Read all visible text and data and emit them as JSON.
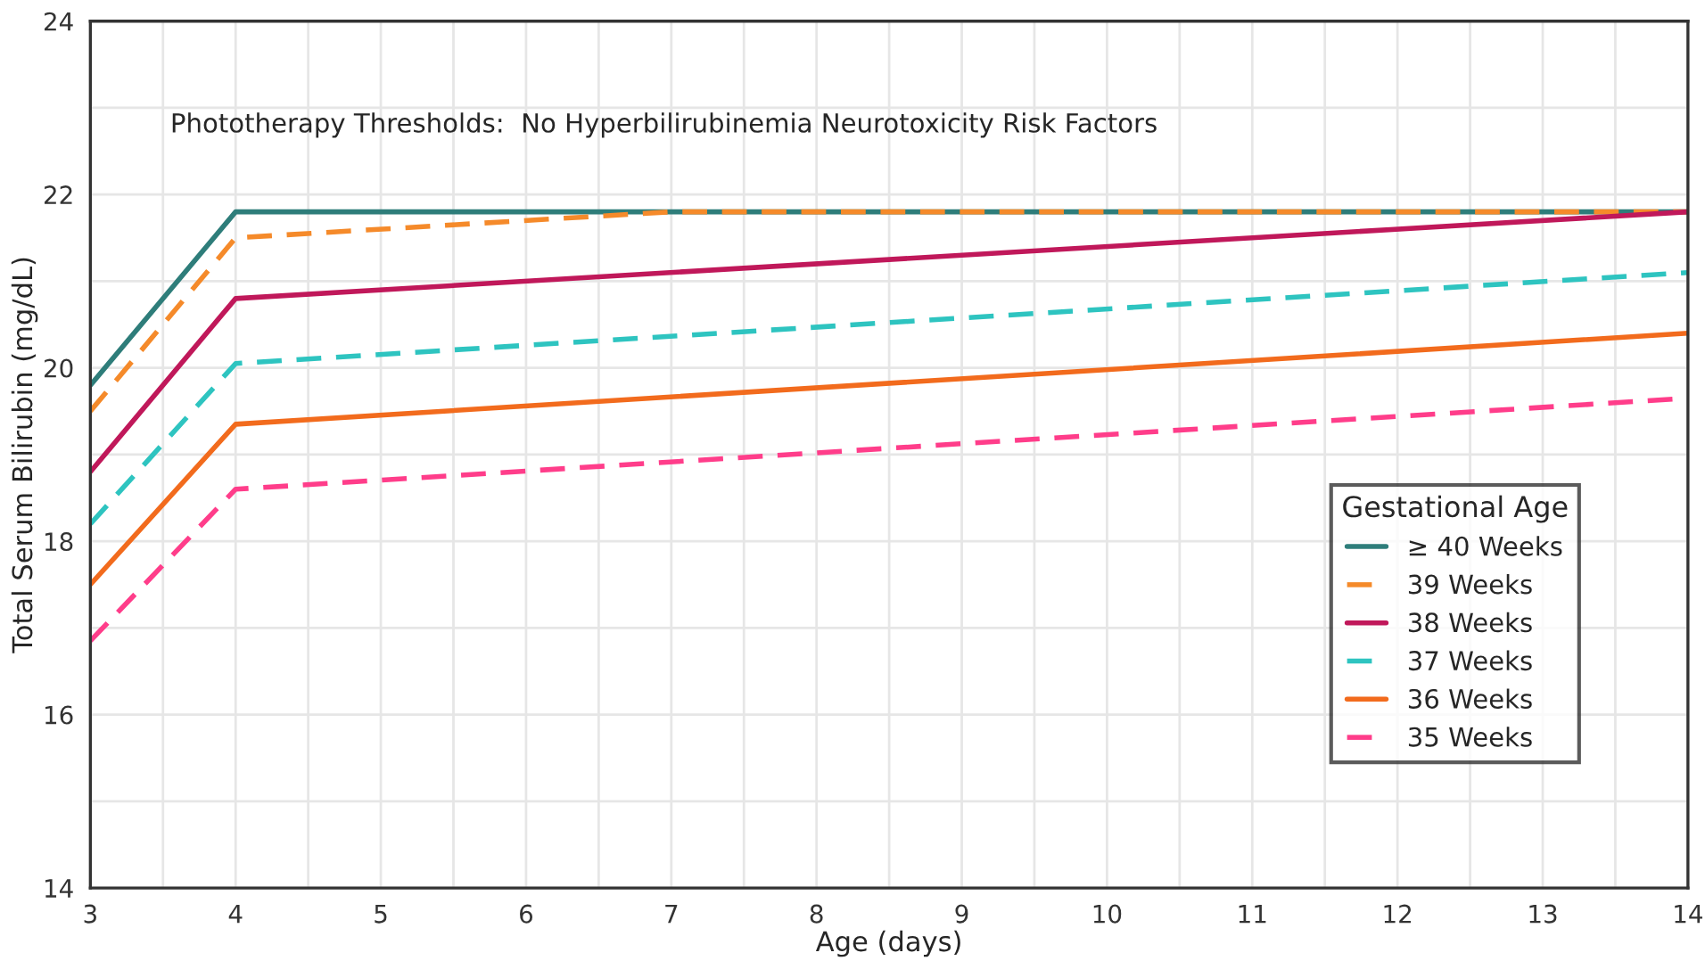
{
  "chart_data": {
    "type": "line",
    "title": "Phototherapy Thresholds:  No Hyperbilirubinemia Neurotoxicity Risk Factors",
    "xlabel": "Age (days)",
    "ylabel": "Total Serum Bilirubin (mg/dL)",
    "legend_title": "Gestational Age",
    "xlim": [
      3,
      14
    ],
    "ylim": [
      14,
      24
    ],
    "xticks": [
      3,
      {
        "value": 3.5,
        "label": null
      },
      4,
      {
        "value": 4.5,
        "label": null
      },
      5,
      {
        "value": 5.5,
        "label": null
      },
      6,
      {
        "value": 6.5,
        "label": null
      },
      7,
      {
        "value": 7.5,
        "label": null
      },
      8,
      {
        "value": 8.5,
        "label": null
      },
      9,
      {
        "value": 9.5,
        "label": null
      },
      10,
      {
        "value": 10.5,
        "label": null
      },
      11,
      {
        "value": 11.5,
        "label": null
      },
      12,
      {
        "value": 12.5,
        "label": null
      },
      13,
      {
        "value": 13.5,
        "label": null
      },
      14
    ],
    "yticks": [
      14,
      {
        "value": 15,
        "label": null
      },
      16,
      {
        "value": 17,
        "label": null
      },
      18,
      {
        "value": 19,
        "label": null
      },
      20,
      {
        "value": 21,
        "label": null
      },
      22,
      {
        "value": 23,
        "label": null
      },
      24
    ],
    "grid": true,
    "legend": "lower right",
    "series": [
      {
        "name": "≥ 40 Weeks",
        "color": "#2e7d7a",
        "line_style": "solid",
        "x": [
          3,
          4,
          14
        ],
        "values": [
          19.8,
          21.8,
          21.8
        ]
      },
      {
        "name": "39 Weeks",
        "color": "#f58a2a",
        "line_style": "dashed",
        "x": [
          3,
          4,
          7,
          14
        ],
        "values": [
          19.5,
          21.5,
          21.8,
          21.8
        ]
      },
      {
        "name": "38 Weeks",
        "color": "#c0185a",
        "line_style": "solid",
        "x": [
          3,
          4,
          14
        ],
        "values": [
          18.8,
          20.8,
          21.8
        ]
      },
      {
        "name": "37 Weeks",
        "color": "#2ec4c0",
        "line_style": "dashed",
        "x": [
          3,
          4,
          14
        ],
        "values": [
          18.2,
          20.05,
          21.1
        ]
      },
      {
        "name": "36 Weeks",
        "color": "#f26b1d",
        "line_style": "solid",
        "x": [
          3,
          4,
          14
        ],
        "values": [
          17.5,
          19.35,
          20.4
        ]
      },
      {
        "name": "35 Weeks",
        "color": "#ff3d8a",
        "line_style": "dashed",
        "x": [
          3,
          4,
          14
        ],
        "values": [
          16.85,
          18.6,
          19.65
        ]
      }
    ]
  }
}
